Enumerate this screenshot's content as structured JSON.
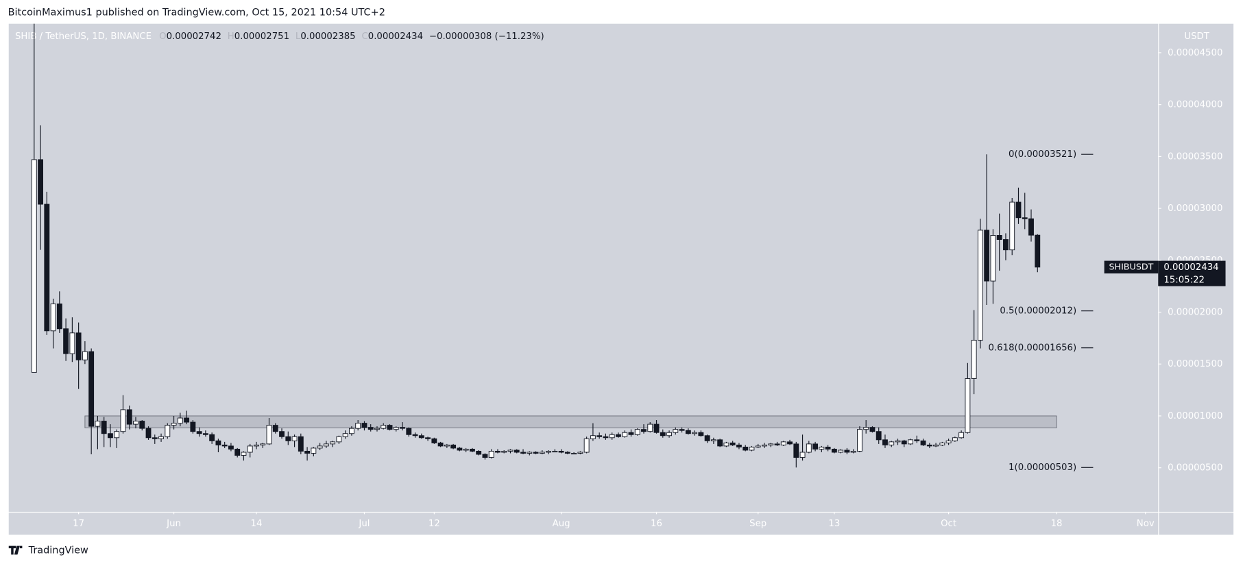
{
  "watermark": "BitcoinMaximus1 published on TradingView.com, Oct 15, 2021 10:54 UTC+2",
  "footer": "TradingView",
  "chart_data": {
    "type": "candlestick",
    "legend": {
      "symbol": "SHIB / TetherUS, 1D, BINANCE",
      "o_label": "O",
      "o": "0.00002742",
      "h_label": "H",
      "h": "0.00002751",
      "l_label": "L",
      "l": "0.00002385",
      "c_label": "C",
      "c": "0.00002434",
      "change": "−0.00000308 (−11.23%)"
    },
    "axis_unit": "USDT",
    "x": [
      "2021-05-10",
      "2021-05-11",
      "2021-05-12",
      "2021-05-13",
      "2021-05-14",
      "2021-05-15",
      "2021-05-16",
      "2021-05-17",
      "2021-05-18",
      "2021-05-19",
      "2021-05-20",
      "2021-05-21",
      "2021-05-22",
      "2021-05-23",
      "2021-05-24",
      "2021-05-25",
      "2021-05-26",
      "2021-05-27",
      "2021-05-28",
      "2021-05-29",
      "2021-05-30",
      "2021-05-31",
      "2021-06-01",
      "2021-06-02",
      "2021-06-03",
      "2021-06-04",
      "2021-06-05",
      "2021-06-06",
      "2021-06-07",
      "2021-06-08",
      "2021-06-09",
      "2021-06-10",
      "2021-06-11",
      "2021-06-12",
      "2021-06-13",
      "2021-06-14",
      "2021-06-15",
      "2021-06-16",
      "2021-06-17",
      "2021-06-18",
      "2021-06-19",
      "2021-06-20",
      "2021-06-21",
      "2021-06-22",
      "2021-06-23",
      "2021-06-24",
      "2021-06-25",
      "2021-06-26",
      "2021-06-27",
      "2021-06-28",
      "2021-06-29",
      "2021-06-30",
      "2021-07-01",
      "2021-07-02",
      "2021-07-03",
      "2021-07-04",
      "2021-07-05",
      "2021-07-06",
      "2021-07-07",
      "2021-07-08",
      "2021-07-09",
      "2021-07-10",
      "2021-07-11",
      "2021-07-12",
      "2021-07-13",
      "2021-07-14",
      "2021-07-15",
      "2021-07-16",
      "2021-07-17",
      "2021-07-18",
      "2021-07-19",
      "2021-07-20",
      "2021-07-21",
      "2021-07-22",
      "2021-07-23",
      "2021-07-24",
      "2021-07-25",
      "2021-07-26",
      "2021-07-27",
      "2021-07-28",
      "2021-07-29",
      "2021-07-30",
      "2021-07-31",
      "2021-08-01",
      "2021-08-02",
      "2021-08-03",
      "2021-08-04",
      "2021-08-05",
      "2021-08-06",
      "2021-08-07",
      "2021-08-08",
      "2021-08-09",
      "2021-08-10",
      "2021-08-11",
      "2021-08-12",
      "2021-08-13",
      "2021-08-14",
      "2021-08-15",
      "2021-08-16",
      "2021-08-17",
      "2021-08-18",
      "2021-08-19",
      "2021-08-20",
      "2021-08-21",
      "2021-08-22",
      "2021-08-23",
      "2021-08-24",
      "2021-08-25",
      "2021-08-26",
      "2021-08-27",
      "2021-08-28",
      "2021-08-29",
      "2021-08-30",
      "2021-08-31",
      "2021-09-01",
      "2021-09-02",
      "2021-09-03",
      "2021-09-04",
      "2021-09-05",
      "2021-09-06",
      "2021-09-07",
      "2021-09-08",
      "2021-09-09",
      "2021-09-10",
      "2021-09-11",
      "2021-09-12",
      "2021-09-13",
      "2021-09-14",
      "2021-09-15",
      "2021-09-16",
      "2021-09-17",
      "2021-09-18",
      "2021-09-19",
      "2021-09-20",
      "2021-09-21",
      "2021-09-22",
      "2021-09-23",
      "2021-09-24",
      "2021-09-25",
      "2021-09-26",
      "2021-09-27",
      "2021-09-28",
      "2021-09-29",
      "2021-09-30",
      "2021-10-01",
      "2021-10-02",
      "2021-10-03",
      "2021-10-04",
      "2021-10-05",
      "2021-10-06",
      "2021-10-07",
      "2021-10-08",
      "2021-10-09",
      "2021-10-10",
      "2021-10-11",
      "2021-10-12",
      "2021-10-13",
      "2021-10-14",
      "2021-10-15"
    ],
    "open": [
      1.42e-05,
      3.47e-05,
      3.04e-05,
      1.82e-05,
      2.08e-05,
      1.84e-05,
      1.6e-05,
      1.8e-05,
      1.54e-05,
      1.62e-05,
      9e-06,
      9.5e-06,
      8.3e-06,
      7.9e-06,
      8.5e-06,
      1.06e-05,
      9.2e-06,
      9.5e-06,
      8.8e-06,
      7.9e-06,
      7.8e-06,
      8e-06,
      9.1e-06,
      9.3e-06,
      9.8e-06,
      9.4e-06,
      8.5e-06,
      8.3e-06,
      8.2e-06,
      7.6e-06,
      7.2e-06,
      7.1e-06,
      6.8e-06,
      6.2e-06,
      6.5e-06,
      7.1e-06,
      7.2e-06,
      7.3e-06,
      9.1e-06,
      8.5e-06,
      8e-06,
      7.6e-06,
      8e-06,
      6.6e-06,
      6.4e-06,
      6.9e-06,
      7.1e-06,
      7.3e-06,
      7.5e-06,
      8e-06,
      8.3e-06,
      8.8e-06,
      9.3e-06,
      8.9e-06,
      8.7e-06,
      8.8e-06,
      9.1e-06,
      8.7e-06,
      8.9e-06,
      8.8e-06,
      8.2e-06,
      8.1e-06,
      7.9e-06,
      7.8e-06,
      7.4e-06,
      7.1e-06,
      7.2e-06,
      6.9e-06,
      6.7e-06,
      6.8e-06,
      6.6e-06,
      6.3e-06,
      6e-06,
      6.6e-06,
      6.5e-06,
      6.6e-06,
      6.7e-06,
      6.5e-06,
      6.4e-06,
      6.5e-06,
      6.4e-06,
      6.5e-06,
      6.6e-06,
      6.6e-06,
      6.5e-06,
      6.4e-06,
      6.4e-06,
      6.5e-06,
      7.8e-06,
      8.1e-06,
      8e-06,
      7.9e-06,
      8.2e-06,
      8e-06,
      8.4e-06,
      8.2e-06,
      8.7e-06,
      8.5e-06,
      9.2e-06,
      8.4e-06,
      8.1e-06,
      8.4e-06,
      8.7e-06,
      8.6e-06,
      8.3e-06,
      8.4e-06,
      8.1e-06,
      7.6e-06,
      7.7e-06,
      7.1e-06,
      7.4e-06,
      7.2e-06,
      7e-06,
      6.7e-06,
      7e-06,
      7.1e-06,
      7.2e-06,
      7.3e-06,
      7.2e-06,
      7.5e-06,
      7.3e-06,
      6e-06,
      6.5e-06,
      7.3e-06,
      6.8e-06,
      7e-06,
      6.8e-06,
      6.5e-06,
      6.7e-06,
      6.5e-06,
      6.6e-06,
      8.7e-06,
      8.9e-06,
      8.5e-06,
      7.7e-06,
      7.2e-06,
      7.5e-06,
      7.6e-06,
      7.3e-06,
      7.7e-06,
      7.6e-06,
      7.2e-06,
      7.1e-06,
      7.2e-06,
      7.4e-06,
      7.6e-06,
      7.9e-06,
      8.4e-06,
      1.36e-05,
      1.73e-05,
      2.79e-05,
      2.3e-05,
      2.74e-05,
      2.7e-05,
      2.6e-05,
      3.06e-05,
      2.91e-05,
      2.9e-05,
      2.742e-05
    ],
    "high": [
      4.9e-05,
      3.8e-05,
      3.16e-05,
      2.13e-05,
      2.2e-05,
      1.94e-05,
      1.95e-05,
      1.9e-05,
      1.72e-05,
      1.65e-05,
      1e-05,
      9.9e-06,
      9.2e-06,
      8.7e-06,
      1.2e-05,
      1.1e-05,
      9.9e-06,
      9.6e-06,
      9e-06,
      8.2e-06,
      8.3e-06,
      9.3e-06,
      1e-05,
      1.03e-05,
      1.05e-05,
      9.6e-06,
      8.9e-06,
      8.6e-06,
      8.4e-06,
      7.8e-06,
      7.5e-06,
      7.4e-06,
      6.9e-06,
      6.6e-06,
      7.3e-06,
      7.5e-06,
      7.4e-06,
      9.8e-06,
      9.3e-06,
      8.8e-06,
      8.5e-06,
      8.2e-06,
      8.3e-06,
      7e-06,
      7e-06,
      7.4e-06,
      7.6e-06,
      7.6e-06,
      8.1e-06,
      8.6e-06,
      9e-06,
      9.6e-06,
      9.5e-06,
      9.2e-06,
      9e-06,
      9.3e-06,
      9.2e-06,
      9e-06,
      9.4e-06,
      8.9e-06,
      8.4e-06,
      8.3e-06,
      8e-06,
      7.9e-06,
      7.5e-06,
      7.3e-06,
      7.3e-06,
      7e-06,
      6.9e-06,
      6.9e-06,
      6.7e-06,
      6.4e-06,
      6.8e-06,
      6.8e-06,
      6.7e-06,
      6.8e-06,
      6.8e-06,
      6.8e-06,
      6.6e-06,
      6.6e-06,
      6.7e-06,
      6.7e-06,
      6.8e-06,
      6.8e-06,
      6.6e-06,
      6.5e-06,
      6.6e-06,
      8e-06,
      9.3e-06,
      8.4e-06,
      8.3e-06,
      8.4e-06,
      8.4e-06,
      8.6e-06,
      8.7e-06,
      8.8e-06,
      9.2e-06,
      9.4e-06,
      9.6e-06,
      8.7e-06,
      8.6e-06,
      8.9e-06,
      8.9e-06,
      8.8e-06,
      8.6e-06,
      8.6e-06,
      8.2e-06,
      7.9e-06,
      7.8e-06,
      7.5e-06,
      7.6e-06,
      7.4e-06,
      7.2e-06,
      7.1e-06,
      7.3e-06,
      7.4e-06,
      7.4e-06,
      7.5e-06,
      7.6e-06,
      7.7e-06,
      7.5e-06,
      8.2e-06,
      7.6e-06,
      7.5e-06,
      7.1e-06,
      7.2e-06,
      6.9e-06,
      6.8e-06,
      6.9e-06,
      6.8e-06,
      9e-06,
      9.6e-06,
      9e-06,
      8.9e-06,
      8.2e-06,
      7.6e-06,
      7.8e-06,
      7.7e-06,
      7.8e-06,
      8.1e-06,
      7.8e-06,
      7.4e-06,
      7.4e-06,
      7.5e-06,
      7.8e-06,
      8e-06,
      8.6e-06,
      1.51e-05,
      2.02e-05,
      2.9e-05,
      3.521e-05,
      2.8e-05,
      2.95e-05,
      2.76e-05,
      3.1e-05,
      3.2e-05,
      3.15e-05,
      2.99e-05,
      2.751e-05
    ],
    "low": [
      1.42e-05,
      2.6e-05,
      1.78e-05,
      1.65e-05,
      1.8e-05,
      1.53e-05,
      1.52e-05,
      1.26e-05,
      1.5e-05,
      6.3e-06,
      6.8e-06,
      7e-06,
      7e-06,
      6.9e-06,
      8.3e-06,
      8.7e-06,
      8.8e-06,
      8.6e-06,
      7.7e-06,
      7.3e-06,
      7.5e-06,
      7.8e-06,
      8.7e-06,
      9e-06,
      9.2e-06,
      8.3e-06,
      8e-06,
      8e-06,
      7.3e-06,
      6.5e-06,
      6.9e-06,
      6.6e-06,
      6e-06,
      5.7e-06,
      6e-06,
      6.8e-06,
      6.9e-06,
      7.2e-06,
      8.3e-06,
      7.8e-06,
      7.2e-06,
      7e-06,
      6.3e-06,
      5.7e-06,
      6.1e-06,
      6.7e-06,
      6.9e-06,
      7e-06,
      7.3e-06,
      7.8e-06,
      8.1e-06,
      8.6e-06,
      8.6e-06,
      8.5e-06,
      8.5e-06,
      8.7e-06,
      8.6e-06,
      8.5e-06,
      8.6e-06,
      8e-06,
      7.9e-06,
      7.8e-06,
      7.6e-06,
      7.3e-06,
      7e-06,
      6.9e-06,
      6.8e-06,
      6.6e-06,
      6.5e-06,
      6.5e-06,
      6.2e-06,
      5.8e-06,
      5.9e-06,
      6.4e-06,
      6.4e-06,
      6.4e-06,
      6.4e-06,
      6.3e-06,
      6.2e-06,
      6.3e-06,
      6.3e-06,
      6.3e-06,
      6.5e-06,
      6.4e-06,
      6.3e-06,
      6.3e-06,
      6.3e-06,
      6.4e-06,
      7.6e-06,
      7.8e-06,
      7.7e-06,
      7.7e-06,
      7.9e-06,
      7.9e-06,
      8e-06,
      8.1e-06,
      8.3e-06,
      8.4e-06,
      8.3e-06,
      7.9e-06,
      7.9e-06,
      8.2e-06,
      8.4e-06,
      8.2e-06,
      8.1e-06,
      8e-06,
      7.4e-06,
      7.3e-06,
      7e-06,
      7e-06,
      7.1e-06,
      6.8e-06,
      6.6e-06,
      6.6e-06,
      6.9e-06,
      6.9e-06,
      7e-06,
      7.1e-06,
      7.1e-06,
      7.2e-06,
      5.03e-06,
      5.7e-06,
      6.4e-06,
      6.6e-06,
      6.5e-06,
      6.6e-06,
      6.4e-06,
      6.4e-06,
      6.3e-06,
      6.4e-06,
      6.5e-06,
      8.3e-06,
      8.4e-06,
      7.3e-06,
      6.9e-06,
      7e-06,
      7.2e-06,
      7e-06,
      7.2e-06,
      7.4e-06,
      7.1e-06,
      6.9e-06,
      7e-06,
      7.1e-06,
      7.2e-06,
      7.5e-06,
      7.8e-06,
      8.3e-06,
      1.21e-05,
      1.65e-05,
      2.07e-05,
      2.08e-05,
      2.4e-05,
      2.5e-05,
      2.55e-05,
      2.85e-05,
      2.8e-05,
      2.68e-05,
      2.385e-05
    ],
    "close": [
      3.47e-05,
      3.04e-05,
      1.82e-05,
      2.08e-05,
      1.84e-05,
      1.6e-05,
      1.8e-05,
      1.54e-05,
      1.62e-05,
      9e-06,
      9.5e-06,
      8.3e-06,
      7.9e-06,
      8.5e-06,
      1.06e-05,
      9.2e-06,
      9.5e-06,
      8.8e-06,
      7.9e-06,
      7.8e-06,
      8e-06,
      9.1e-06,
      9.3e-06,
      9.8e-06,
      9.4e-06,
      8.5e-06,
      8.3e-06,
      8.2e-06,
      7.6e-06,
      7.2e-06,
      7.1e-06,
      6.8e-06,
      6.2e-06,
      6.5e-06,
      7.1e-06,
      7.2e-06,
      7.3e-06,
      9.1e-06,
      8.5e-06,
      8e-06,
      7.6e-06,
      8e-06,
      6.6e-06,
      6.4e-06,
      6.9e-06,
      7.1e-06,
      7.3e-06,
      7.5e-06,
      8e-06,
      8.3e-06,
      8.8e-06,
      9.3e-06,
      8.9e-06,
      8.7e-06,
      8.8e-06,
      9.1e-06,
      8.7e-06,
      8.9e-06,
      8.8e-06,
      8.2e-06,
      8.1e-06,
      7.9e-06,
      7.8e-06,
      7.4e-06,
      7.1e-06,
      7.2e-06,
      6.9e-06,
      6.7e-06,
      6.8e-06,
      6.6e-06,
      6.3e-06,
      6e-06,
      6.6e-06,
      6.5e-06,
      6.6e-06,
      6.7e-06,
      6.5e-06,
      6.4e-06,
      6.5e-06,
      6.4e-06,
      6.5e-06,
      6.6e-06,
      6.6e-06,
      6.5e-06,
      6.4e-06,
      6.4e-06,
      6.5e-06,
      7.8e-06,
      8.1e-06,
      8e-06,
      7.9e-06,
      8.2e-06,
      8e-06,
      8.4e-06,
      8.2e-06,
      8.7e-06,
      8.5e-06,
      9.2e-06,
      8.4e-06,
      8.1e-06,
      8.4e-06,
      8.7e-06,
      8.6e-06,
      8.3e-06,
      8.4e-06,
      8.1e-06,
      7.6e-06,
      7.7e-06,
      7.1e-06,
      7.4e-06,
      7.2e-06,
      7e-06,
      6.7e-06,
      7e-06,
      7.1e-06,
      7.2e-06,
      7.3e-06,
      7.2e-06,
      7.5e-06,
      7.3e-06,
      6e-06,
      6.5e-06,
      7.3e-06,
      6.8e-06,
      7e-06,
      6.8e-06,
      6.5e-06,
      6.7e-06,
      6.5e-06,
      6.6e-06,
      8.7e-06,
      8.9e-06,
      8.5e-06,
      7.7e-06,
      7.2e-06,
      7.5e-06,
      7.6e-06,
      7.3e-06,
      7.7e-06,
      7.6e-06,
      7.2e-06,
      7.1e-06,
      7.2e-06,
      7.4e-06,
      7.6e-06,
      7.9e-06,
      8.4e-06,
      1.36e-05,
      1.73e-05,
      2.79e-05,
      2.3e-05,
      2.74e-05,
      2.7e-05,
      2.6e-05,
      3.06e-05,
      2.91e-05,
      2.9e-05,
      2.742e-05,
      2.434e-05
    ],
    "up_color": "#ffffff",
    "down_color": "#131722",
    "xlim": [
      "2021-05-06",
      "2021-11-03"
    ],
    "xticks": [
      {
        "value": "2021-05-17",
        "label": "17"
      },
      {
        "value": "2021-06-01",
        "label": "Jun"
      },
      {
        "value": "2021-06-14",
        "label": "14"
      },
      {
        "value": "2021-07-01",
        "label": "Jul"
      },
      {
        "value": "2021-07-12",
        "label": "12"
      },
      {
        "value": "2021-08-01",
        "label": "Aug"
      },
      {
        "value": "2021-08-16",
        "label": "16"
      },
      {
        "value": "2021-09-01",
        "label": "Sep"
      },
      {
        "value": "2021-09-13",
        "label": "13"
      },
      {
        "value": "2021-10-01",
        "label": "Oct"
      },
      {
        "value": "2021-10-18",
        "label": "18"
      },
      {
        "value": "2021-11-01",
        "label": "Nov"
      }
    ],
    "ylim": [
      7.6e-07,
      4.779e-05
    ],
    "yticks": [
      {
        "value": 5e-06,
        "label": "0.00000500"
      },
      {
        "value": 1e-05,
        "label": "0.00001000"
      },
      {
        "value": 1.5e-05,
        "label": "0.00001500"
      },
      {
        "value": 2e-05,
        "label": "0.00002000"
      },
      {
        "value": 2.5e-05,
        "label": "0.00002500"
      },
      {
        "value": 3e-05,
        "label": "0.00003000"
      },
      {
        "value": 3.5e-05,
        "label": "0.00003500"
      },
      {
        "value": 4e-05,
        "label": "0.00004000"
      },
      {
        "value": 4.5e-05,
        "label": "0.00004500"
      }
    ],
    "zone": {
      "low": 8.85e-06,
      "high": 1e-05,
      "from": "2021-05-18",
      "to": "2021-10-18"
    },
    "fib_levels": [
      {
        "value": 3.521e-05,
        "label": "0(0.00003521)"
      },
      {
        "value": 2.012e-05,
        "label": "0.5(0.00002012)"
      },
      {
        "value": 1.656e-05,
        "label": "0.618(0.00001656)"
      },
      {
        "value": 5.03e-06,
        "label": "1(0.00000503)"
      }
    ],
    "last_price": {
      "name": "SHIBUSDT",
      "value": 2.434e-05,
      "label": "0.00002434",
      "countdown": "15:05:22"
    }
  }
}
